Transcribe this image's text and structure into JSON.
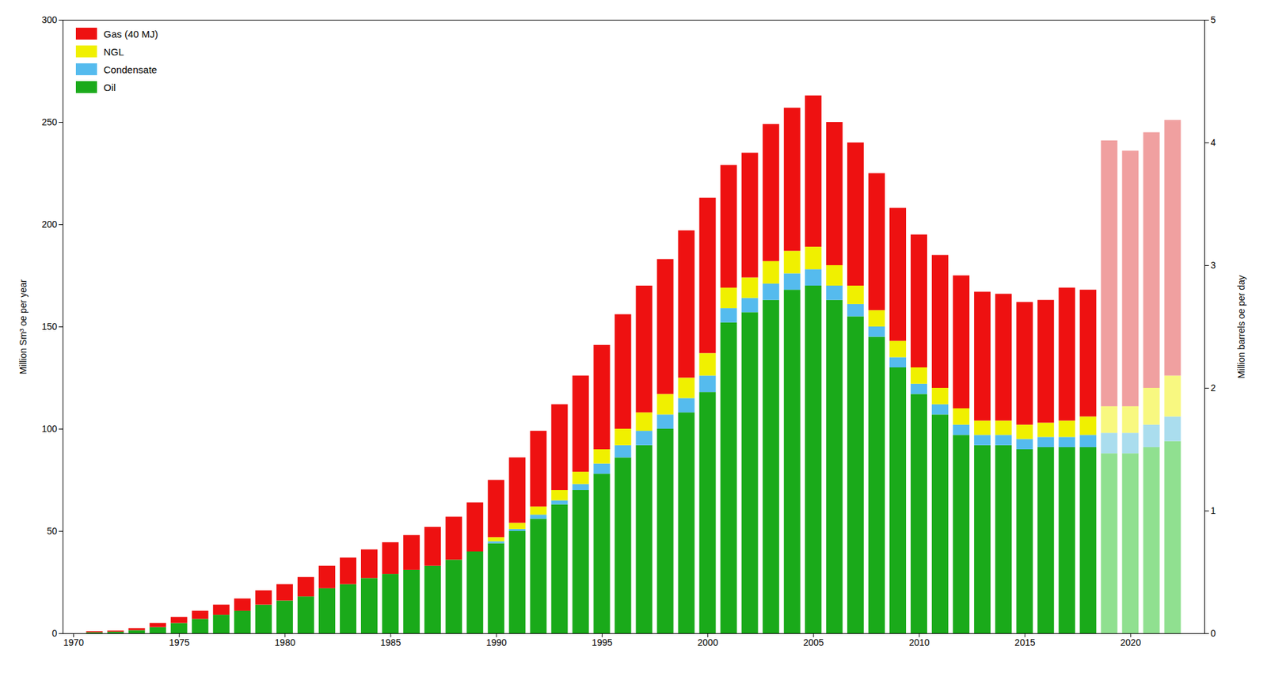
{
  "chart_data": {
    "type": "bar",
    "stacked": true,
    "x": [
      1971,
      1972,
      1973,
      1974,
      1975,
      1976,
      1977,
      1978,
      1979,
      1980,
      1981,
      1982,
      1983,
      1984,
      1985,
      1986,
      1987,
      1988,
      1989,
      1990,
      1991,
      1992,
      1993,
      1994,
      1995,
      1996,
      1997,
      1998,
      1999,
      2000,
      2001,
      2002,
      2003,
      2004,
      2005,
      2006,
      2007,
      2008,
      2009,
      2010,
      2011,
      2012,
      2013,
      2014,
      2015,
      2016,
      2017,
      2018,
      2019,
      2020,
      2021,
      2022
    ],
    "xlim": [
      1969.5,
      2023.5
    ],
    "xticks": [
      1970,
      1975,
      1980,
      1985,
      1990,
      1995,
      2000,
      2005,
      2010,
      2015,
      2020
    ],
    "ylabel": "Million Sm³ oe per year",
    "ylim": [
      0,
      300
    ],
    "yticks": [
      0,
      50,
      100,
      150,
      200,
      250,
      300
    ],
    "y2label": "Million barrels oe per day",
    "y2lim": [
      0,
      5
    ],
    "y2ticks": [
      0,
      1,
      2,
      3,
      4,
      5
    ],
    "grid": false,
    "legend": "upper left",
    "series": [
      {
        "name": "Gas (40 MJ)",
        "color": "#ee1111",
        "colors": [
          "#ee1111",
          "#ee1111",
          "#ee1111",
          "#ee1111",
          "#ee1111",
          "#ee1111",
          "#ee1111",
          "#ee1111",
          "#ee1111",
          "#ee1111",
          "#ee1111",
          "#ee1111",
          "#ee1111",
          "#ee1111",
          "#ee1111",
          "#ee1111",
          "#ee1111",
          "#ee1111",
          "#ee1111",
          "#ee1111",
          "#ee1111",
          "#ee1111",
          "#ee1111",
          "#ee1111",
          "#ee1111",
          "#ee1111",
          "#ee1111",
          "#ee1111",
          "#ee1111",
          "#ee1111",
          "#ee1111",
          "#ee1111",
          "#ee1111",
          "#ee1111",
          "#ee1111",
          "#ee1111",
          "#ee1111",
          "#ee1111",
          "#ee1111",
          "#ee1111",
          "#ee1111",
          "#ee1111",
          "#ee1111",
          "#ee1111",
          "#ee1111",
          "#ee1111",
          "#ee1111",
          "#ee1111",
          "#f0a0a0",
          "#f0a0a0",
          "#f0a0a0",
          "#f0a0a0"
        ],
        "values": [
          0.5,
          0.5,
          1.0,
          2.0,
          3.0,
          4.0,
          5.0,
          6.0,
          7.0,
          8.0,
          9.5,
          11.0,
          13.0,
          14.0,
          15.5,
          17.0,
          19.0,
          21.0,
          24.0,
          28.0,
          32.0,
          37.0,
          42.0,
          47.0,
          51.0,
          56.0,
          62.0,
          66.0,
          72.0,
          76.0,
          60.0,
          61.0,
          67.0,
          70.0,
          74.0,
          70.0,
          70.0,
          67.0,
          65.0,
          65.0,
          65.0,
          65.0,
          63.0,
          62.0,
          60.0,
          60.0,
          65.0,
          62.0,
          130.0,
          125.0,
          125.0,
          125.0
        ]
      },
      {
        "name": "NGL",
        "color": "#f0f000",
        "colors": [
          "#f0f000",
          "#f0f000",
          "#f0f000",
          "#f0f000",
          "#f0f000",
          "#f0f000",
          "#f0f000",
          "#f0f000",
          "#f0f000",
          "#f0f000",
          "#f0f000",
          "#f0f000",
          "#f0f000",
          "#f0f000",
          "#f0f000",
          "#f0f000",
          "#f0f000",
          "#f0f000",
          "#f0f000",
          "#f0f000",
          "#f0f000",
          "#f0f000",
          "#f0f000",
          "#f0f000",
          "#f0f000",
          "#f0f000",
          "#f0f000",
          "#f0f000",
          "#f0f000",
          "#f0f000",
          "#f0f000",
          "#f0f000",
          "#f0f000",
          "#f0f000",
          "#f0f000",
          "#f0f000",
          "#f0f000",
          "#f0f000",
          "#f0f000",
          "#f0f000",
          "#f0f000",
          "#f0f000",
          "#f0f000",
          "#f0f000",
          "#f0f000",
          "#f0f000",
          "#f0f000",
          "#f0f000",
          "#f8f880",
          "#f8f880",
          "#f8f880",
          "#f8f880"
        ],
        "values": [
          0.0,
          0.0,
          0.0,
          0.0,
          0.0,
          0.0,
          0.0,
          0.0,
          0.0,
          0.0,
          0.0,
          0.0,
          0.0,
          0.0,
          0.0,
          0.0,
          0.0,
          0.0,
          0.0,
          2.0,
          3.0,
          4.0,
          5.0,
          6.0,
          7.0,
          8.0,
          9.0,
          10.0,
          10.0,
          11.0,
          10.0,
          10.0,
          11.0,
          11.0,
          11.0,
          10.0,
          9.0,
          8.0,
          8.0,
          8.0,
          8.0,
          8.0,
          7.0,
          7.0,
          7.0,
          7.0,
          8.0,
          9.0,
          13.0,
          13.0,
          18.0,
          20.0
        ]
      },
      {
        "name": "Condensate",
        "color": "#55bbee",
        "colors": [
          "#55bbee",
          "#55bbee",
          "#55bbee",
          "#55bbee",
          "#55bbee",
          "#55bbee",
          "#55bbee",
          "#55bbee",
          "#55bbee",
          "#55bbee",
          "#55bbee",
          "#55bbee",
          "#55bbee",
          "#55bbee",
          "#55bbee",
          "#55bbee",
          "#55bbee",
          "#55bbee",
          "#55bbee",
          "#55bbee",
          "#55bbee",
          "#55bbee",
          "#55bbee",
          "#55bbee",
          "#55bbee",
          "#55bbee",
          "#55bbee",
          "#55bbee",
          "#55bbee",
          "#55bbee",
          "#55bbee",
          "#55bbee",
          "#55bbee",
          "#55bbee",
          "#55bbee",
          "#55bbee",
          "#55bbee",
          "#55bbee",
          "#55bbee",
          "#55bbee",
          "#55bbee",
          "#55bbee",
          "#55bbee",
          "#55bbee",
          "#55bbee",
          "#55bbee",
          "#55bbee",
          "#55bbee",
          "#aaddee",
          "#aaddee",
          "#aaddee",
          "#aaddee"
        ],
        "values": [
          0.0,
          0.0,
          0.0,
          0.0,
          0.0,
          0.0,
          0.0,
          0.0,
          0.0,
          0.0,
          0.0,
          0.0,
          0.0,
          0.0,
          0.0,
          0.0,
          0.0,
          0.0,
          0.0,
          1.0,
          1.0,
          2.0,
          2.0,
          3.0,
          5.0,
          6.0,
          7.0,
          7.0,
          7.0,
          8.0,
          7.0,
          7.0,
          8.0,
          8.0,
          8.0,
          7.0,
          6.0,
          5.0,
          5.0,
          5.0,
          5.0,
          5.0,
          5.0,
          5.0,
          5.0,
          5.0,
          5.0,
          6.0,
          10.0,
          10.0,
          11.0,
          12.0
        ]
      },
      {
        "name": "Oil",
        "color": "#1aaa1a",
        "colors": [
          "#1aaa1a",
          "#1aaa1a",
          "#1aaa1a",
          "#1aaa1a",
          "#1aaa1a",
          "#1aaa1a",
          "#1aaa1a",
          "#1aaa1a",
          "#1aaa1a",
          "#1aaa1a",
          "#1aaa1a",
          "#1aaa1a",
          "#1aaa1a",
          "#1aaa1a",
          "#1aaa1a",
          "#1aaa1a",
          "#1aaa1a",
          "#1aaa1a",
          "#1aaa1a",
          "#1aaa1a",
          "#1aaa1a",
          "#1aaa1a",
          "#1aaa1a",
          "#1aaa1a",
          "#1aaa1a",
          "#1aaa1a",
          "#1aaa1a",
          "#1aaa1a",
          "#1aaa1a",
          "#1aaa1a",
          "#1aaa1a",
          "#1aaa1a",
          "#1aaa1a",
          "#1aaa1a",
          "#1aaa1a",
          "#1aaa1a",
          "#1aaa1a",
          "#1aaa1a",
          "#1aaa1a",
          "#1aaa1a",
          "#1aaa1a",
          "#1aaa1a",
          "#1aaa1a",
          "#1aaa1a",
          "#1aaa1a",
          "#1aaa1a",
          "#1aaa1a",
          "#1aaa1a",
          "#90e090",
          "#90e090",
          "#90e090",
          "#90e090"
        ],
        "values": [
          0.5,
          0.8,
          1.5,
          3.0,
          5.0,
          7.0,
          9.0,
          11.0,
          14.0,
          16.0,
          18.0,
          22.0,
          24.0,
          27.0,
          29.0,
          31.0,
          33.0,
          36.0,
          40.0,
          44.0,
          50.0,
          56.0,
          63.0,
          70.0,
          78.0,
          86.0,
          92.0,
          100.0,
          108.0,
          118.0,
          152.0,
          157.0,
          163.0,
          168.0,
          170.0,
          163.0,
          155.0,
          145.0,
          130.0,
          117.0,
          107.0,
          97.0,
          92.0,
          92.0,
          90.0,
          91.0,
          91.0,
          91.0,
          88.0,
          88.0,
          91.0,
          94.0
        ]
      }
    ]
  }
}
